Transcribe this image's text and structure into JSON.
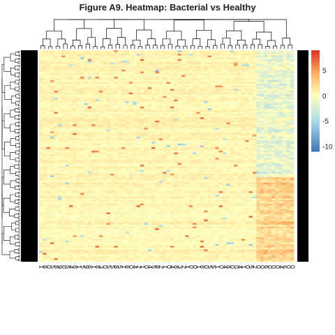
{
  "chart_data": {
    "type": "heatmap",
    "title": "Figure A9. Heatmap: Bacterial vs Healthy",
    "legend": {
      "position": "right",
      "ticks": [
        5,
        0,
        -5,
        -10
      ],
      "range": [
        -11,
        9
      ],
      "colors": {
        "low": "#4575b4",
        "lowmid": "#abd9e9",
        "mid": "#ffffbf",
        "highmid": "#fdae61",
        "high": "#d73027"
      }
    },
    "column_dendrogram": true,
    "row_dendrogram": true,
    "annotation_color": "#000000",
    "cluster_split_row_fraction": 0.6,
    "groups": [
      {
        "name": "left block",
        "region": "columns 1-58, all rows",
        "typical_value": 0.5
      },
      {
        "name": "right block upper",
        "region": "columns 59-68, rows above split",
        "typical_value": -1.5
      },
      {
        "name": "right block lower",
        "region": "columns 59-68, rows below split",
        "typical_value": 2.5
      }
    ],
    "column_labels_note": "Column labels are illegible rotated sample identifiers; rendered as placeholder glyphs",
    "column_label_glyphs": [
      "1",
      "8",
      "0",
      "5",
      "8",
      "9",
      "0",
      "5",
      "4",
      "8",
      "1",
      "5",
      "9",
      "6",
      "1",
      "8",
      "3",
      "0",
      "5",
      "5",
      "8",
      "5",
      "1",
      "8",
      "0",
      "4",
      "2",
      "1",
      "0",
      "4",
      "5",
      "8",
      "2",
      "1",
      "0",
      "4",
      "8",
      "3",
      "2",
      "1",
      "0",
      "0",
      "1",
      "8",
      "0",
      "5",
      "5",
      "1",
      "0",
      "4",
      "8",
      "0",
      "0",
      "4",
      "1",
      "0",
      "5",
      "2",
      "0",
      "0",
      "6",
      "0",
      "0",
      "0",
      "4",
      "6",
      "0",
      "0"
    ]
  }
}
